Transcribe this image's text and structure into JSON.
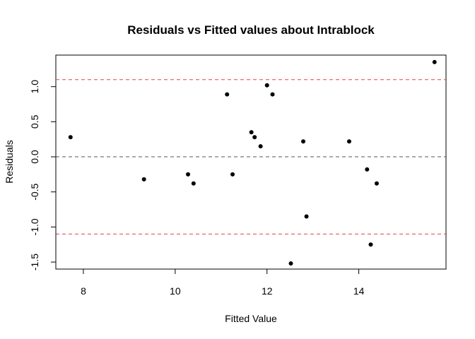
{
  "chart_data": {
    "type": "scatter",
    "title": "Residuals vs Fitted values about Intrablock",
    "xlabel": "Fitted Value",
    "ylabel": "Residuals",
    "xlim": [
      7.4,
      15.9
    ],
    "ylim": [
      -1.6,
      1.45
    ],
    "x_ticks": [
      8,
      10,
      12,
      14
    ],
    "y_ticks": [
      -1.5,
      -1.0,
      -0.5,
      0.0,
      0.5,
      1.0
    ],
    "x_tick_labels": [
      "8",
      "10",
      "12",
      "14"
    ],
    "y_tick_labels": [
      "-1.5",
      "-1.0",
      "-0.5",
      "0.0",
      "0.5",
      "1.0"
    ],
    "grid": false,
    "point_color": "#000000",
    "reference_lines": [
      {
        "y": 1.1,
        "color": "#e8424c",
        "style": "dashed"
      },
      {
        "y": 0.0,
        "color": "#555555",
        "style": "dashed"
      },
      {
        "y": -1.1,
        "color": "#e8424c",
        "style": "dashed"
      }
    ],
    "points": [
      {
        "x": 7.72,
        "y": 0.28
      },
      {
        "x": 9.32,
        "y": -0.32
      },
      {
        "x": 10.28,
        "y": -0.25
      },
      {
        "x": 10.4,
        "y": -0.38
      },
      {
        "x": 11.13,
        "y": 0.89
      },
      {
        "x": 11.25,
        "y": -0.25
      },
      {
        "x": 11.66,
        "y": 0.35
      },
      {
        "x": 11.73,
        "y": 0.28
      },
      {
        "x": 11.86,
        "y": 0.15
      },
      {
        "x": 12.0,
        "y": 1.02
      },
      {
        "x": 12.12,
        "y": 0.89
      },
      {
        "x": 12.52,
        "y": -1.52
      },
      {
        "x": 12.79,
        "y": 0.22
      },
      {
        "x": 12.86,
        "y": -0.85
      },
      {
        "x": 13.79,
        "y": 0.22
      },
      {
        "x": 14.18,
        "y": -0.18
      },
      {
        "x": 14.26,
        "y": -1.25
      },
      {
        "x": 14.39,
        "y": -0.38
      },
      {
        "x": 15.65,
        "y": 1.35
      }
    ]
  }
}
